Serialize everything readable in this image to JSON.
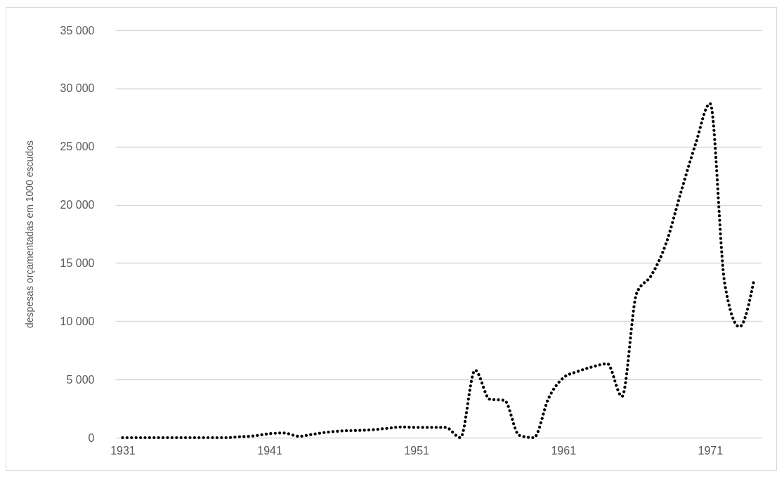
{
  "chart_data": {
    "type": "line",
    "ylabel": "despesas  orçamentadas em 1000 escudos",
    "x": [
      1931,
      1932,
      1933,
      1934,
      1935,
      1936,
      1937,
      1938,
      1939,
      1940,
      1941,
      1942,
      1943,
      1944,
      1945,
      1946,
      1947,
      1948,
      1949,
      1950,
      1951,
      1952,
      1953,
      1954,
      1955,
      1956,
      1957,
      1958,
      1959,
      1960,
      1961,
      1962,
      1963,
      1964,
      1965,
      1966,
      1967,
      1968,
      1969,
      1970,
      1971,
      1972,
      1973,
      1974
    ],
    "series": [
      {
        "color": "#000000",
        "values": [
          0,
          0,
          0,
          0,
          0,
          0,
          0,
          0,
          80,
          160,
          340,
          400,
          120,
          300,
          480,
          580,
          620,
          680,
          800,
          920,
          880,
          880,
          880,
          0,
          5790,
          3300,
          3200,
          200,
          0,
          3380,
          5130,
          5690,
          6090,
          6350,
          3550,
          12400,
          13940,
          16680,
          21030,
          25190,
          28700,
          13200,
          9530,
          13600
        ]
      }
    ],
    "xlim": [
      1930.5,
      1974.5
    ],
    "xticks": [
      1931,
      1941,
      1951,
      1961,
      1971
    ],
    "ylim": [
      0,
      35000
    ],
    "yticks": [
      {
        "value": 0,
        "label": "0"
      },
      {
        "value": 5000,
        "label": "5 000"
      },
      {
        "value": 10000,
        "label": "10 000"
      },
      {
        "value": 15000,
        "label": "15 000"
      },
      {
        "value": 20000,
        "label": "20 000"
      },
      {
        "value": 25000,
        "label": "25 000"
      },
      {
        "value": 30000,
        "label": "30 000"
      },
      {
        "value": 35000,
        "label": "35 000"
      }
    ],
    "grid": "y",
    "marker": "none",
    "line_style": "dotted"
  }
}
